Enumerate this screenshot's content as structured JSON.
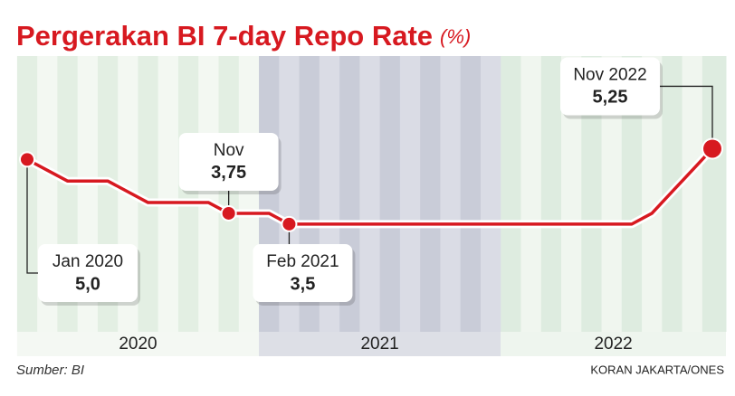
{
  "chart_data": {
    "type": "line",
    "title": "Pergerakan BI 7-day Repo Rate",
    "unit": "(%)",
    "source": "Sumber: BI",
    "credit": "KORAN JAKARTA/ONES",
    "years": [
      "2020",
      "2021",
      "2022"
    ],
    "categories": [
      "Jan 2020",
      null,
      null,
      null,
      null,
      null,
      null,
      null,
      null,
      null,
      "Nov",
      null,
      null,
      "Feb 2021",
      null,
      null,
      null,
      null,
      null,
      null,
      null,
      null,
      null,
      null,
      null,
      null,
      null,
      null,
      null,
      null,
      null,
      null,
      null,
      null,
      "Nov 2022"
    ],
    "series": [
      {
        "name": "BI 7-day Repo Rate",
        "color": "#d71920",
        "values": [
          5.0,
          4.75,
          4.5,
          4.5,
          4.5,
          4.25,
          4.0,
          4.0,
          4.0,
          4.0,
          3.75,
          3.75,
          3.75,
          3.5,
          3.5,
          3.5,
          3.5,
          3.5,
          3.5,
          3.5,
          3.5,
          3.5,
          3.5,
          3.5,
          3.5,
          3.5,
          3.5,
          3.5,
          3.5,
          3.5,
          3.5,
          3.75,
          4.25,
          4.75,
          5.25
        ],
        "value_labels": [
          "5,0",
          null,
          null,
          null,
          null,
          null,
          null,
          null,
          null,
          null,
          "3,75",
          null,
          null,
          "3,5",
          null,
          null,
          null,
          null,
          null,
          null,
          null,
          null,
          null,
          null,
          null,
          null,
          null,
          null,
          null,
          null,
          null,
          null,
          null,
          null,
          "5,25"
        ]
      }
    ],
    "ylim": [
      1,
      7.4
    ],
    "legend": false
  }
}
